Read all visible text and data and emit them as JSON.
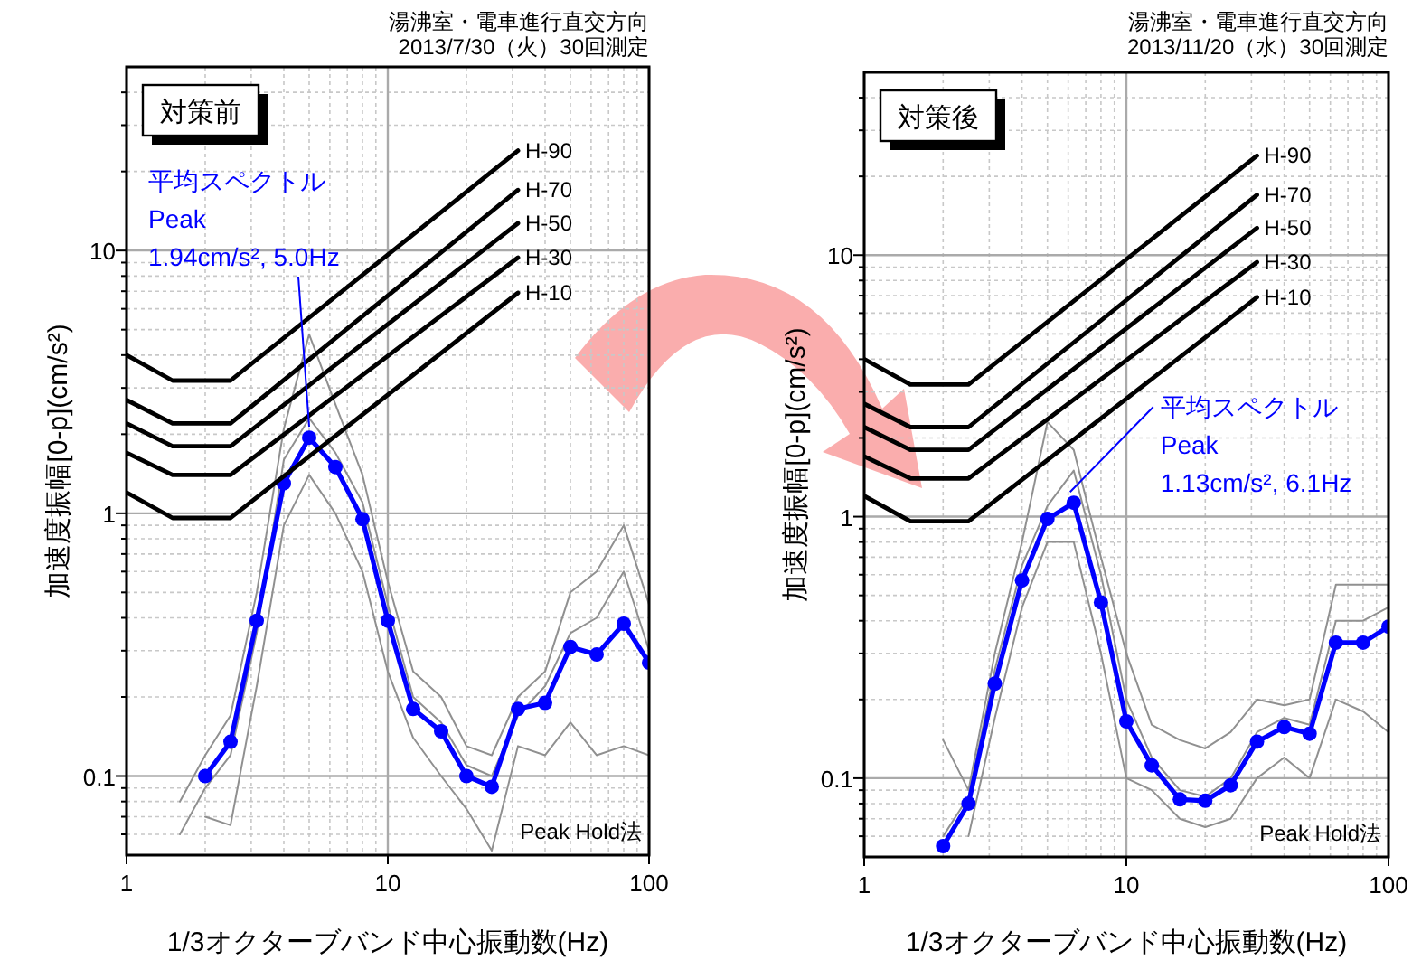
{
  "chart_data": [
    {
      "type": "line",
      "title": "湯沸室・電車進行直交方向",
      "subtitle": "2013/7/30（火）30回測定",
      "xlabel": "1/3オクターブバンド中心振動数(Hz)",
      "ylabel": "加速度振幅[0-p](cm/s²)",
      "log": "xy",
      "xlim": [
        1,
        100
      ],
      "ylim": [
        0.05,
        50
      ],
      "xticks": [
        1,
        10,
        100
      ],
      "yticks": [
        0.1,
        1,
        10
      ],
      "grid": true,
      "series": [
        {
          "color": "#909090",
          "marker": "none",
          "x": [
            1.6,
            2,
            2.5,
            3.15,
            4,
            5,
            6.3,
            8,
            10,
            12.5,
            16,
            20,
            25,
            31.5,
            40,
            50,
            63,
            80,
            100
          ],
          "values": [
            0.08,
            0.12,
            0.17,
            0.5,
            2.1,
            4.8,
            2.6,
            1.4,
            0.55,
            0.25,
            0.2,
            0.13,
            0.12,
            0.2,
            0.25,
            0.5,
            0.6,
            0.9,
            0.45
          ]
        },
        {
          "color": "#909090",
          "marker": "none",
          "x": [
            2,
            2.5,
            3.15,
            4,
            5,
            6.3,
            8,
            10,
            12.5,
            16,
            20,
            25,
            31.5,
            40,
            50,
            63,
            80,
            100
          ],
          "values": [
            0.07,
            0.065,
            0.22,
            0.9,
            1.4,
            1.0,
            0.6,
            0.25,
            0.14,
            0.1,
            0.075,
            0.052,
            0.13,
            0.12,
            0.16,
            0.12,
            0.13,
            0.12
          ]
        },
        {
          "color": "#909090",
          "marker": "none",
          "x": [
            1.6,
            2,
            2.5,
            3.15,
            4,
            5,
            6.3,
            8,
            10,
            12.5,
            16,
            20,
            25,
            31.5,
            40,
            50,
            63,
            80,
            100
          ],
          "values": [
            0.06,
            0.09,
            0.12,
            0.35,
            1.6,
            2.3,
            1.7,
            1.1,
            0.45,
            0.2,
            0.16,
            0.11,
            0.1,
            0.17,
            0.22,
            0.35,
            0.4,
            0.6,
            0.3
          ]
        },
        {
          "color": "#0000ff",
          "marker": "circle",
          "x": [
            2,
            2.5,
            3.15,
            4,
            5,
            6.3,
            8,
            10,
            12.5,
            16,
            20,
            25,
            31.5,
            40,
            50,
            63,
            80,
            100
          ],
          "values": [
            0.1,
            0.135,
            0.39,
            1.3,
            1.94,
            1.5,
            0.95,
            0.39,
            0.18,
            0.148,
            0.1,
            0.091,
            0.18,
            0.19,
            0.31,
            0.29,
            0.38,
            0.27
          ]
        },
        {
          "name": "H-90",
          "color": "#000000",
          "marker": "none",
          "x": [
            1,
            1.5,
            2.5,
            31.5
          ],
          "values": [
            4.0,
            3.2,
            3.2,
            24
          ]
        },
        {
          "name": "H-70",
          "color": "#000000",
          "marker": "none",
          "x": [
            1,
            1.5,
            2.5,
            31.5
          ],
          "values": [
            2.7,
            2.2,
            2.2,
            17
          ]
        },
        {
          "name": "H-50",
          "color": "#000000",
          "marker": "none",
          "x": [
            1,
            1.5,
            2.5,
            31.5
          ],
          "values": [
            2.2,
            1.8,
            1.8,
            12.7
          ]
        },
        {
          "name": "H-30",
          "color": "#000000",
          "marker": "none",
          "x": [
            1,
            1.5,
            2.5,
            31.5
          ],
          "values": [
            1.7,
            1.4,
            1.4,
            9.4
          ]
        },
        {
          "name": "H-10",
          "color": "#000000",
          "marker": "none",
          "x": [
            1,
            1.5,
            2.5,
            31.5
          ],
          "values": [
            1.2,
            0.96,
            0.96,
            6.9
          ]
        }
      ],
      "annotations": [
        "対策前",
        {
          "text": "平均スペクトル\nPeak\n1.94cm/s², 5.0Hz",
          "x": 5,
          "y": 1.94
        },
        "Peak Hold法"
      ]
    },
    {
      "type": "line",
      "title": "湯沸室・電車進行直交方向",
      "subtitle": "2013/11/20（水）30回測定",
      "xlabel": "1/3オクターブバンド中心振動数(Hz)",
      "ylabel": "加速度振幅[0-p](cm/s²)",
      "log": "xy",
      "xlim": [
        1,
        100
      ],
      "ylim": [
        0.05,
        50
      ],
      "xticks": [
        1,
        10,
        100
      ],
      "yticks": [
        0.1,
        1,
        10
      ],
      "grid": true,
      "series": [
        {
          "color": "#909090",
          "marker": "none",
          "x": [
            2,
            2.5,
            3.15,
            4,
            5,
            6.3,
            8,
            10,
            12.5,
            16,
            20,
            25,
            31.5,
            40,
            50,
            63,
            80,
            100
          ],
          "values": [
            0.14,
            0.09,
            0.3,
            0.8,
            2.3,
            1.8,
            0.7,
            0.3,
            0.16,
            0.14,
            0.13,
            0.15,
            0.2,
            0.19,
            0.2,
            0.55,
            0.55,
            0.55
          ]
        },
        {
          "color": "#909090",
          "marker": "none",
          "x": [
            2.5,
            3.15,
            4,
            5,
            6.3,
            8,
            10,
            12.5,
            16,
            20,
            25,
            31.5,
            40,
            50,
            63,
            80,
            100
          ],
          "values": [
            0.06,
            0.17,
            0.45,
            0.8,
            0.8,
            0.3,
            0.1,
            0.09,
            0.07,
            0.065,
            0.07,
            0.1,
            0.12,
            0.1,
            0.2,
            0.18,
            0.15
          ]
        },
        {
          "color": "#909090",
          "marker": "none",
          "x": [
            2,
            2.5,
            3.15,
            4,
            5,
            6.3,
            8,
            10,
            12.5,
            16,
            20,
            25,
            31.5,
            40,
            50,
            63,
            80,
            100
          ],
          "values": [
            0.06,
            0.085,
            0.26,
            0.65,
            1.1,
            1.5,
            0.6,
            0.2,
            0.12,
            0.09,
            0.085,
            0.1,
            0.15,
            0.17,
            0.16,
            0.4,
            0.4,
            0.45
          ]
        },
        {
          "color": "#0000ff",
          "marker": "circle",
          "x": [
            2,
            2.5,
            3.15,
            4,
            5,
            6.3,
            8,
            10,
            12.5,
            16,
            20,
            25,
            31.5,
            40,
            50,
            63,
            80,
            100
          ],
          "values": [
            0.055,
            0.08,
            0.23,
            0.57,
            0.98,
            1.13,
            0.47,
            0.165,
            0.112,
            0.083,
            0.082,
            0.094,
            0.138,
            0.157,
            0.148,
            0.33,
            0.33,
            0.38
          ]
        },
        {
          "name": "H-90",
          "color": "#000000",
          "marker": "none",
          "x": [
            1,
            1.5,
            2.5,
            31.5
          ],
          "values": [
            4.0,
            3.2,
            3.2,
            24
          ]
        },
        {
          "name": "H-70",
          "color": "#000000",
          "marker": "none",
          "x": [
            1,
            1.5,
            2.5,
            31.5
          ],
          "values": [
            2.7,
            2.2,
            2.2,
            17
          ]
        },
        {
          "name": "H-50",
          "color": "#000000",
          "marker": "none",
          "x": [
            1,
            1.5,
            2.5,
            31.5
          ],
          "values": [
            2.2,
            1.8,
            1.8,
            12.7
          ]
        },
        {
          "name": "H-30",
          "color": "#000000",
          "marker": "none",
          "x": [
            1,
            1.5,
            2.5,
            31.5
          ],
          "values": [
            1.7,
            1.4,
            1.4,
            9.4
          ]
        },
        {
          "name": "H-10",
          "color": "#000000",
          "marker": "none",
          "x": [
            1,
            1.5,
            2.5,
            31.5
          ],
          "values": [
            1.2,
            0.96,
            0.96,
            6.9
          ]
        }
      ],
      "annotations": [
        "対策後",
        {
          "text": "平均スペクトル\nPeak\n1.13cm/s², 6.1Hz",
          "x": 6.1,
          "y": 1.13
        },
        "Peak Hold法"
      ]
    }
  ]
}
